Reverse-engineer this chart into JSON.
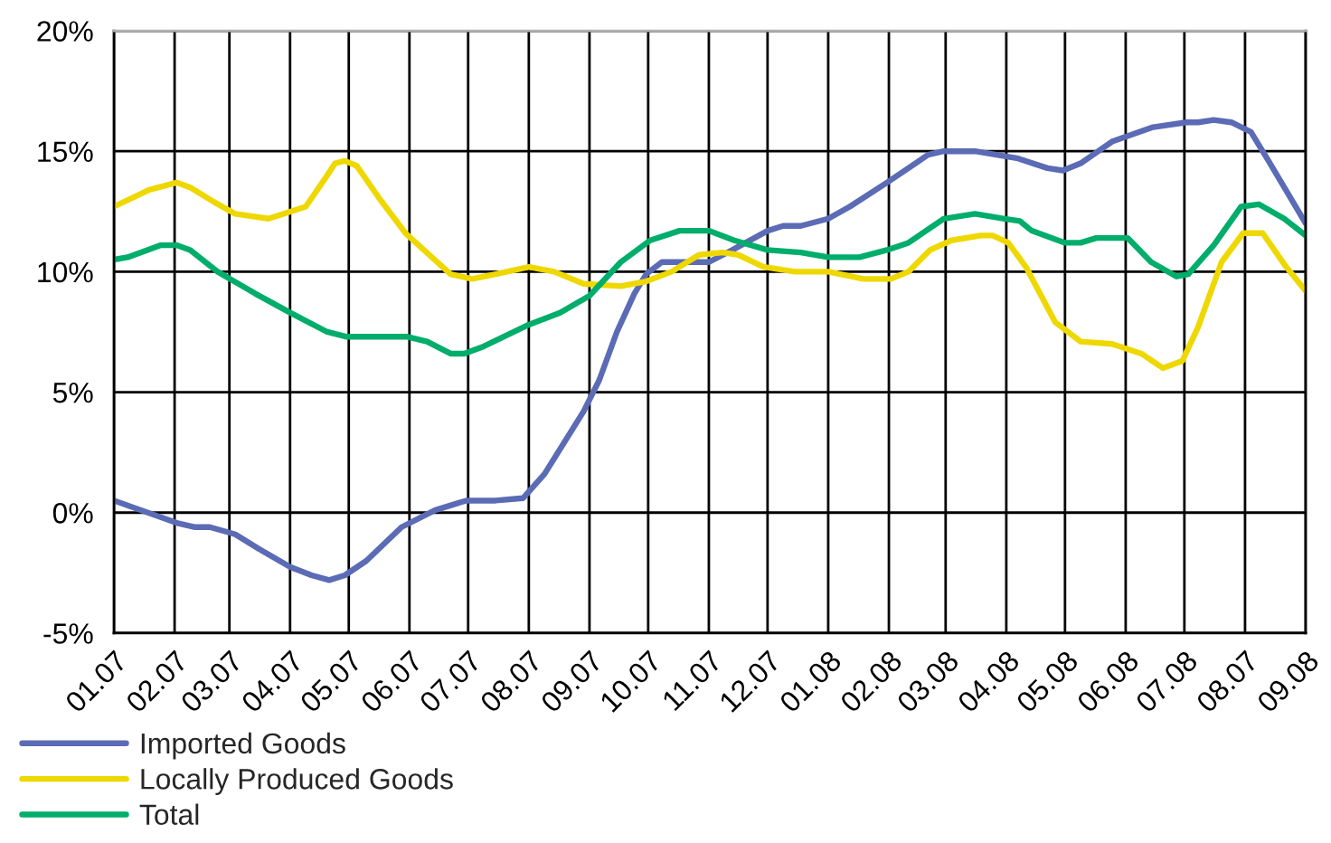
{
  "chart_data": {
    "type": "line",
    "xlim": [
      "2007-01-01",
      "2008-09-01"
    ],
    "xticks": [
      {
        "value": "2007-01",
        "label": "01.07"
      },
      {
        "value": "2007-02",
        "label": "02.07"
      },
      {
        "value": "2007-03",
        "label": "03.07"
      },
      {
        "value": "2007-04",
        "label": "04.07"
      },
      {
        "value": "2007-05",
        "label": "05.07"
      },
      {
        "value": "2007-06",
        "label": "06.07"
      },
      {
        "value": "2007-07",
        "label": "07.07"
      },
      {
        "value": "2007-08",
        "label": "08.07"
      },
      {
        "value": "2007-09",
        "label": "09.07"
      },
      {
        "value": "2007-10",
        "label": "10.07"
      },
      {
        "value": "2007-11",
        "label": "11.07"
      },
      {
        "value": "2007-12",
        "label": "12.07"
      },
      {
        "value": "2008-01",
        "label": "01.08"
      },
      {
        "value": "2008-02",
        "label": "02.08"
      },
      {
        "value": "2008-03",
        "label": "03.08"
      },
      {
        "value": "2008-04",
        "label": "04.08"
      },
      {
        "value": "2008-05",
        "label": "05.08"
      },
      {
        "value": "2008-06",
        "label": "06.08"
      },
      {
        "value": "2008-07",
        "label": "07.08"
      },
      {
        "value": "2008-08",
        "label": "08.07"
      },
      {
        "value": "2008-09",
        "label": "09.08"
      }
    ],
    "ylim": [
      -5,
      20
    ],
    "yticks": [
      {
        "value": -5,
        "label": "-5%"
      },
      {
        "value": 0,
        "label": "0%"
      },
      {
        "value": 5,
        "label": "5%"
      },
      {
        "value": 10,
        "label": "10%"
      },
      {
        "value": 15,
        "label": "15%"
      },
      {
        "value": 20,
        "label": "20%"
      }
    ],
    "grid": true,
    "legend": "bottom",
    "line_style": "solid",
    "series": [
      {
        "name": "Imported Goods",
        "color": "#5b6bb5",
        "x": [
          "2007-01-01",
          "2007-02-03",
          "2007-02-11",
          "2007-02-19",
          "2007-03-04",
          "2007-03-16",
          "2007-04-01",
          "2007-04-12",
          "2007-04-21",
          "2007-04-29",
          "2007-05-10",
          "2007-05-28",
          "2007-06-14",
          "2007-06-30",
          "2007-07-15",
          "2007-07-29",
          "2007-08-09",
          "2007-08-29",
          "2007-09-06",
          "2007-09-15",
          "2007-09-24",
          "2007-09-30",
          "2007-10-08",
          "2007-11-01",
          "2007-11-13",
          "2007-12-01",
          "2007-12-09",
          "2007-12-18",
          "2008-01-01",
          "2008-01-12",
          "2008-01-31",
          "2008-02-21",
          "2008-02-29",
          "2008-03-16",
          "2008-04-07",
          "2008-04-22",
          "2008-04-30",
          "2008-05-09",
          "2008-05-25",
          "2008-06-15",
          "2008-07-02",
          "2008-07-08",
          "2008-07-16",
          "2008-07-25",
          "2008-08-04",
          "2008-08-13",
          "2008-08-24",
          "2008-09-01"
        ],
        "values": [
          0.5,
          -0.45,
          -0.6,
          -0.6,
          -0.9,
          -1.5,
          -2.25,
          -2.6,
          -2.8,
          -2.6,
          -2.0,
          -0.6,
          0.1,
          0.5,
          0.5,
          0.6,
          1.6,
          4.2,
          5.5,
          7.5,
          9.1,
          9.9,
          10.4,
          10.4,
          10.9,
          11.7,
          11.9,
          11.9,
          12.2,
          12.7,
          13.7,
          14.85,
          15.0,
          15.0,
          14.7,
          14.3,
          14.2,
          14.5,
          15.4,
          16.0,
          16.2,
          16.2,
          16.3,
          16.2,
          15.8,
          14.6,
          13.1,
          12.0
        ]
      },
      {
        "name": "Locally Produced Goods",
        "color": "#eed800",
        "x": [
          "2007-01-01",
          "2007-01-19",
          "2007-02-02",
          "2007-02-09",
          "2007-02-21",
          "2007-03-04",
          "2007-03-21",
          "2007-04-09",
          "2007-04-20",
          "2007-04-24",
          "2007-04-29",
          "2007-05-05",
          "2007-05-17",
          "2007-05-30",
          "2007-06-22",
          "2007-07-03",
          "2007-07-15",
          "2007-08-01",
          "2007-08-14",
          "2007-08-29",
          "2007-09-17",
          "2007-09-30",
          "2007-10-13",
          "2007-10-27",
          "2007-11-08",
          "2007-11-16",
          "2007-11-29",
          "2007-12-15",
          "2008-01-01",
          "2008-01-19",
          "2008-02-02",
          "2008-02-11",
          "2008-02-22",
          "2008-03-04",
          "2008-03-19",
          "2008-03-25",
          "2008-04-02",
          "2008-04-11",
          "2008-04-26",
          "2008-05-09",
          "2008-05-25",
          "2008-06-09",
          "2008-06-20",
          "2008-06-30",
          "2008-07-08",
          "2008-07-20",
          "2008-07-31",
          "2008-08-10",
          "2008-08-22",
          "2008-09-01"
        ],
        "values": [
          12.7,
          13.4,
          13.7,
          13.5,
          12.9,
          12.4,
          12.2,
          12.7,
          14.0,
          14.5,
          14.6,
          14.4,
          13.0,
          11.6,
          9.9,
          9.7,
          9.9,
          10.2,
          10.0,
          9.5,
          9.4,
          9.6,
          10.0,
          10.7,
          10.8,
          10.7,
          10.2,
          10.0,
          10.0,
          9.7,
          9.7,
          10.0,
          10.9,
          11.3,
          11.5,
          11.5,
          11.2,
          10.2,
          7.9,
          7.1,
          7.0,
          6.6,
          6.0,
          6.3,
          7.7,
          10.4,
          11.6,
          11.6,
          10.2,
          9.2
        ]
      },
      {
        "name": "Total",
        "color": "#00ad6b",
        "x": [
          "2007-01-01",
          "2007-01-08",
          "2007-01-25",
          "2007-02-02",
          "2007-02-09",
          "2007-02-23",
          "2007-03-14",
          "2007-04-01",
          "2007-04-20",
          "2007-04-30",
          "2007-05-31",
          "2007-06-10",
          "2007-06-22",
          "2007-06-29",
          "2007-07-09",
          "2007-08-01",
          "2007-08-17",
          "2007-09-01",
          "2007-09-17",
          "2007-10-02",
          "2007-10-17",
          "2007-11-01",
          "2007-11-14",
          "2007-12-01",
          "2007-12-18",
          "2008-01-01",
          "2008-01-17",
          "2008-01-31",
          "2008-02-11",
          "2008-02-29",
          "2008-03-16",
          "2008-03-31",
          "2008-04-08",
          "2008-04-14",
          "2008-05-01",
          "2008-05-09",
          "2008-05-17",
          "2008-06-02",
          "2008-06-14",
          "2008-06-27",
          "2008-07-03",
          "2008-07-16",
          "2008-07-30",
          "2008-08-08",
          "2008-08-21",
          "2008-09-01"
        ],
        "values": [
          10.5,
          10.6,
          11.1,
          11.1,
          10.9,
          10.0,
          9.1,
          8.3,
          7.5,
          7.3,
          7.3,
          7.1,
          6.6,
          6.6,
          6.9,
          7.8,
          8.3,
          9.0,
          10.4,
          11.3,
          11.7,
          11.7,
          11.3,
          10.9,
          10.8,
          10.6,
          10.6,
          10.9,
          11.2,
          12.2,
          12.4,
          12.2,
          12.1,
          11.7,
          11.2,
          11.2,
          11.4,
          11.4,
          10.4,
          9.8,
          9.9,
          11.1,
          12.7,
          12.8,
          12.2,
          11.5
        ]
      }
    ]
  }
}
